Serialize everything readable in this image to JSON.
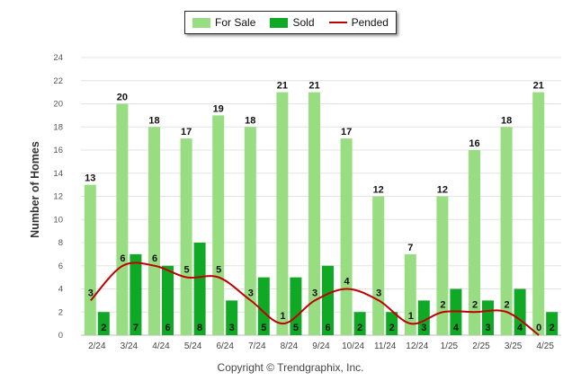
{
  "chart_data": {
    "type": "bar",
    "categories": [
      "2/24",
      "3/24",
      "4/24",
      "5/24",
      "6/24",
      "7/24",
      "8/24",
      "9/24",
      "10/24",
      "11/24",
      "12/24",
      "1/25",
      "2/25",
      "3/25",
      "4/25"
    ],
    "series": [
      {
        "name": "For Sale",
        "type": "bar",
        "color": "#99dd82",
        "values": [
          13,
          20,
          18,
          17,
          19,
          18,
          21,
          21,
          17,
          12,
          7,
          12,
          16,
          18,
          21
        ]
      },
      {
        "name": "Sold",
        "type": "bar",
        "color": "#10a926",
        "values": [
          2,
          7,
          6,
          8,
          3,
          5,
          5,
          6,
          2,
          2,
          3,
          4,
          3,
          4,
          2
        ]
      },
      {
        "name": "Pended",
        "type": "line",
        "color": "#c00000",
        "values": [
          3,
          6,
          6,
          5,
          5,
          3,
          1,
          3,
          4,
          3,
          1,
          2,
          2,
          2,
          0
        ]
      }
    ],
    "ylabel": "Number of Homes",
    "ylim": [
      0,
      24
    ],
    "yticks": [
      0,
      2,
      4,
      6,
      8,
      10,
      12,
      14,
      16,
      18,
      20,
      22,
      24
    ],
    "grid": true,
    "legend_position": "top-center"
  },
  "footer": {
    "copyright": "Copyright © Trendgraphix, Inc."
  }
}
